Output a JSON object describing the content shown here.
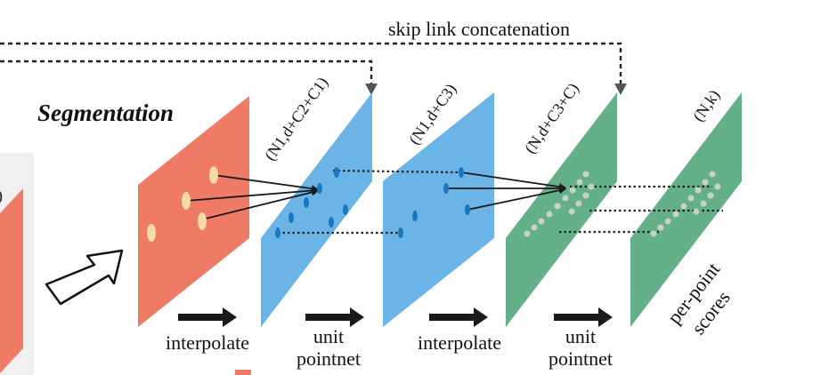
{
  "title": "Segmentation",
  "skip_label": "skip link concatenation",
  "planes": [
    {
      "dim_label": "",
      "color": "#ef7b67"
    },
    {
      "dim_label": "(N1,d+C2+C1)",
      "color": "#6ab4e8"
    },
    {
      "dim_label": "(N1,d+C3)",
      "color": "#6ab4e8"
    },
    {
      "dim_label": "(N,d+C3+C)",
      "color": "#63b08a"
    },
    {
      "dim_label": "(N,k)",
      "color": "#63b08a"
    }
  ],
  "steps": [
    {
      "line1": "interpolate",
      "line2": ""
    },
    {
      "line1": "unit",
      "line2": "pointnet"
    },
    {
      "line1": "interpolate",
      "line2": ""
    },
    {
      "line1": "unit",
      "line2": "pointnet"
    }
  ],
  "output_label": {
    "line1": "per-point",
    "line2": "scores"
  },
  "colors": {
    "arrow": "#1a1a1a",
    "dot_cream": "#f9d9a4",
    "dot_blue": "#1a78c2",
    "dot_grey": "#c9cfcc",
    "left_box": "#f0f0f0"
  }
}
